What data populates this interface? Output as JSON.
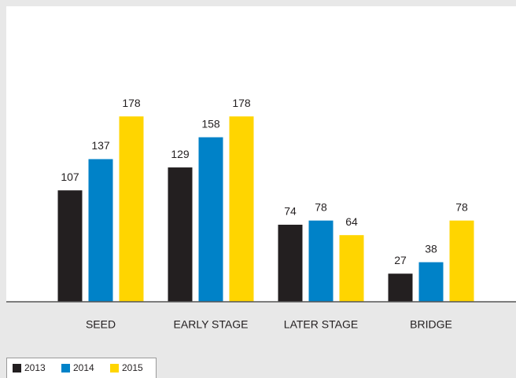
{
  "chart_data": {
    "type": "bar",
    "categories": [
      "SEED",
      "EARLY STAGE",
      "LATER STAGE",
      "BRIDGE"
    ],
    "series": [
      {
        "name": "2013",
        "color": "#231f20",
        "values": [
          107,
          129,
          74,
          27
        ]
      },
      {
        "name": "2014",
        "color": "#0082c8",
        "values": [
          137,
          158,
          78,
          38
        ]
      },
      {
        "name": "2015",
        "color": "#ffd500",
        "values": [
          178,
          178,
          64,
          78
        ]
      }
    ],
    "ylim": [
      0,
      280
    ]
  }
}
